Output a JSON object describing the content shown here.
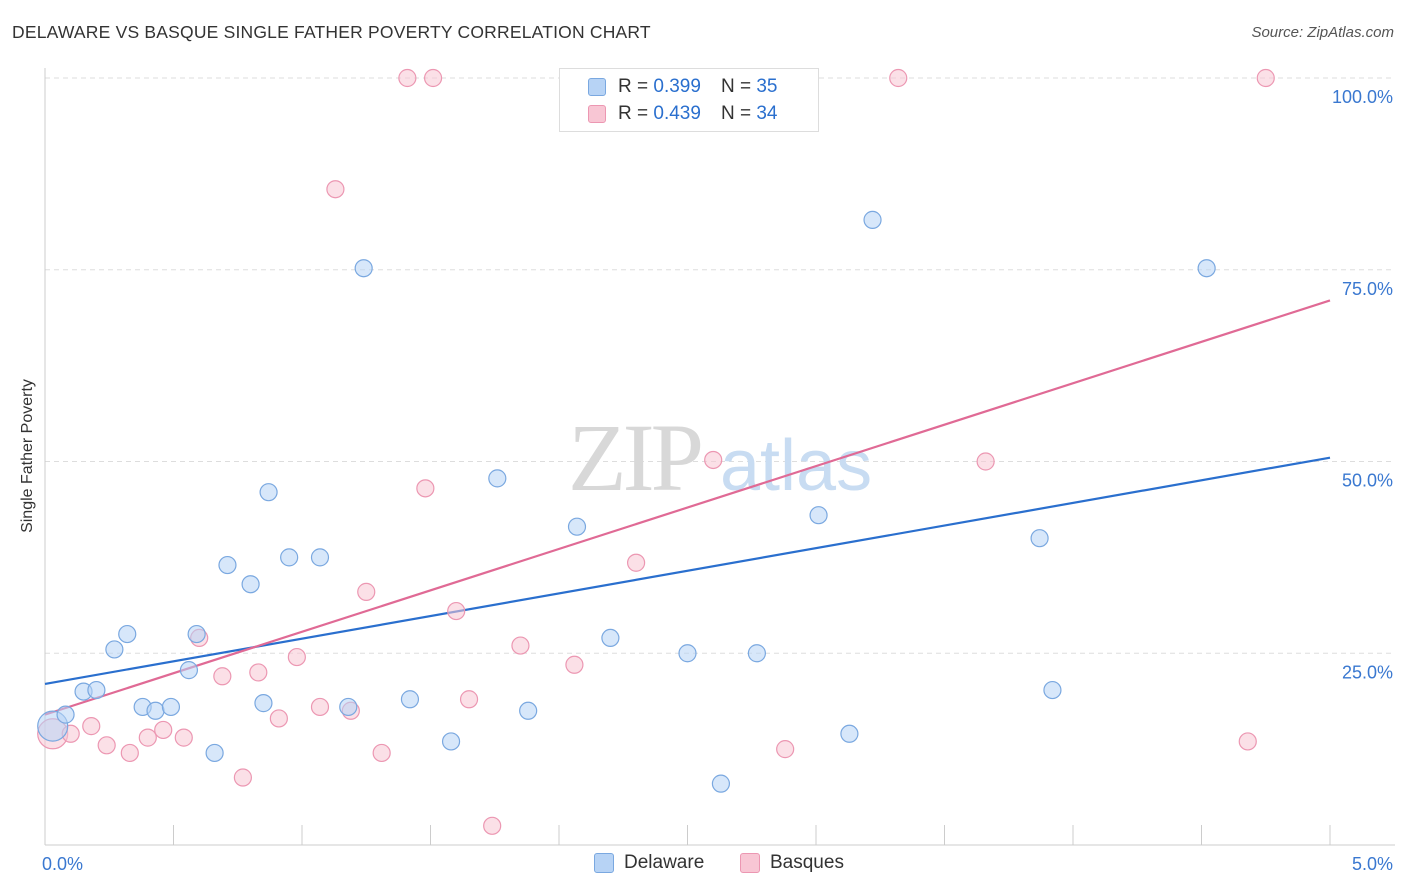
{
  "header": {
    "title": "DELAWARE VS BASQUE SINGLE FATHER POVERTY CORRELATION CHART",
    "source": "Source: ZipAtlas.com"
  },
  "watermark": {
    "zip": "ZIP",
    "atlas": "atlas"
  },
  "legend_top": [
    {
      "r_label": "R = ",
      "r_value": "0.399",
      "n_label": "N = ",
      "n_value": "35"
    },
    {
      "r_label": "R = ",
      "r_value": "0.439",
      "n_label": "N = ",
      "n_value": "34"
    }
  ],
  "legend_bottom": [
    "Delaware",
    "Basques"
  ],
  "colors": {
    "delaware_fill": "#b7d3f5",
    "delaware_stroke": "#7aa8e0",
    "delaware_line": "#2a6fce",
    "basques_fill": "#f8c6d4",
    "basques_stroke": "#ec97b2",
    "basques_line": "#e06a95",
    "tick_label": "#3a78d0",
    "grid": "#dddddd"
  },
  "chart_data": {
    "type": "scatter",
    "title": "DELAWARE VS BASQUE SINGLE FATHER POVERTY CORRELATION CHART",
    "xlabel": "",
    "ylabel": "Single Father Poverty",
    "xlim": [
      0,
      5.0
    ],
    "ylim": [
      0,
      105
    ],
    "x_tick_labels": [
      "0.0%",
      "5.0%"
    ],
    "y_ticks": [
      25,
      50,
      75,
      100
    ],
    "y_tick_labels": [
      "25.0%",
      "50.0%",
      "75.0%",
      "100.0%"
    ],
    "grid": true,
    "series": [
      {
        "name": "Delaware",
        "r": 0.399,
        "n": 35,
        "trend": {
          "x": [
            0,
            5.0
          ],
          "y": [
            21.0,
            50.5
          ]
        },
        "points": [
          {
            "x": 0.03,
            "y": 15.5,
            "big": true
          },
          {
            "x": 0.08,
            "y": 17.0
          },
          {
            "x": 0.15,
            "y": 20.0
          },
          {
            "x": 0.2,
            "y": 20.2
          },
          {
            "x": 0.27,
            "y": 25.5
          },
          {
            "x": 0.32,
            "y": 27.5
          },
          {
            "x": 0.38,
            "y": 18.0
          },
          {
            "x": 0.43,
            "y": 17.5
          },
          {
            "x": 0.49,
            "y": 18.0
          },
          {
            "x": 0.56,
            "y": 22.8
          },
          {
            "x": 0.59,
            "y": 27.5
          },
          {
            "x": 0.66,
            "y": 12.0
          },
          {
            "x": 0.71,
            "y": 36.5
          },
          {
            "x": 0.8,
            "y": 34.0
          },
          {
            "x": 0.85,
            "y": 18.5
          },
          {
            "x": 0.87,
            "y": 46.0
          },
          {
            "x": 0.95,
            "y": 37.5
          },
          {
            "x": 1.07,
            "y": 37.5
          },
          {
            "x": 1.18,
            "y": 18.0
          },
          {
            "x": 1.24,
            "y": 75.2
          },
          {
            "x": 1.42,
            "y": 19.0
          },
          {
            "x": 1.58,
            "y": 13.5
          },
          {
            "x": 1.76,
            "y": 47.8
          },
          {
            "x": 1.88,
            "y": 17.5
          },
          {
            "x": 2.07,
            "y": 41.5
          },
          {
            "x": 2.2,
            "y": 27.0
          },
          {
            "x": 2.5,
            "y": 25.0
          },
          {
            "x": 2.63,
            "y": 8.0
          },
          {
            "x": 2.77,
            "y": 25.0
          },
          {
            "x": 3.01,
            "y": 43.0
          },
          {
            "x": 3.13,
            "y": 14.5
          },
          {
            "x": 3.22,
            "y": 81.5
          },
          {
            "x": 3.87,
            "y": 40.0
          },
          {
            "x": 3.92,
            "y": 20.2
          },
          {
            "x": 4.52,
            "y": 75.2
          }
        ]
      },
      {
        "name": "Basques",
        "r": 0.439,
        "n": 34,
        "trend": {
          "x": [
            0,
            5.0
          ],
          "y": [
            17.0,
            71.0
          ]
        },
        "points": [
          {
            "x": 0.03,
            "y": 14.5,
            "big": true
          },
          {
            "x": 0.1,
            "y": 14.5
          },
          {
            "x": 0.18,
            "y": 15.5
          },
          {
            "x": 0.24,
            "y": 13.0
          },
          {
            "x": 0.33,
            "y": 12.0
          },
          {
            "x": 0.4,
            "y": 14.0
          },
          {
            "x": 0.46,
            "y": 15.0
          },
          {
            "x": 0.54,
            "y": 14.0
          },
          {
            "x": 0.6,
            "y": 27.0
          },
          {
            "x": 0.69,
            "y": 22.0
          },
          {
            "x": 0.77,
            "y": 8.8
          },
          {
            "x": 0.83,
            "y": 22.5
          },
          {
            "x": 0.91,
            "y": 16.5
          },
          {
            "x": 0.98,
            "y": 24.5
          },
          {
            "x": 1.07,
            "y": 18.0
          },
          {
            "x": 1.13,
            "y": 85.5
          },
          {
            "x": 1.19,
            "y": 17.5
          },
          {
            "x": 1.25,
            "y": 33.0
          },
          {
            "x": 1.31,
            "y": 12.0
          },
          {
            "x": 1.41,
            "y": 100.0
          },
          {
            "x": 1.51,
            "y": 100.0
          },
          {
            "x": 1.48,
            "y": 46.5
          },
          {
            "x": 1.6,
            "y": 30.5
          },
          {
            "x": 1.65,
            "y": 19.0
          },
          {
            "x": 1.74,
            "y": 2.5
          },
          {
            "x": 1.85,
            "y": 26.0
          },
          {
            "x": 2.06,
            "y": 23.5
          },
          {
            "x": 2.3,
            "y": 36.8
          },
          {
            "x": 2.6,
            "y": 50.2
          },
          {
            "x": 2.88,
            "y": 12.5
          },
          {
            "x": 3.32,
            "y": 100.0
          },
          {
            "x": 3.66,
            "y": 50.0
          },
          {
            "x": 4.68,
            "y": 13.5
          },
          {
            "x": 4.75,
            "y": 100.0
          }
        ]
      }
    ]
  }
}
